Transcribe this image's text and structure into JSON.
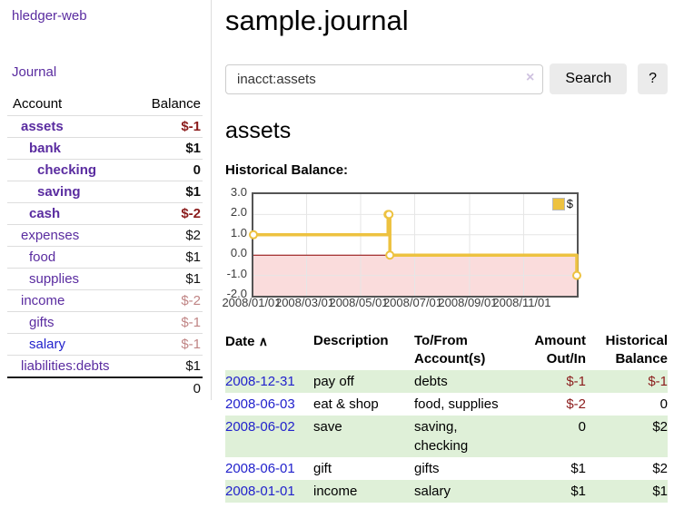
{
  "colors": {
    "link_purple": "#5a2ca0",
    "link_blue": "#2222cc",
    "negative_red": "#8b1c1c",
    "muted_negative": "#c08585",
    "row_stripe_green": "#dff0d8",
    "series_gold": "#edc240"
  },
  "sidebar": {
    "app_title": "hledger-web",
    "journal_label": "Journal",
    "accounts_table": {
      "headers": {
        "account": "Account",
        "balance": "Balance"
      },
      "rows": [
        {
          "account": "assets",
          "depth": 1,
          "bold": true,
          "balance": "$-1",
          "balance_style": "neg-strong"
        },
        {
          "account": "bank",
          "depth": 2,
          "bold": true,
          "balance": "$1",
          "balance_style": "pos-strong"
        },
        {
          "account": "checking",
          "depth": 3,
          "bold": true,
          "balance": "0",
          "balance_style": "pos-strong"
        },
        {
          "account": "saving",
          "depth": 3,
          "bold": true,
          "balance": "$1",
          "balance_style": "pos-strong"
        },
        {
          "account": "cash",
          "depth": 2,
          "bold": true,
          "balance": "$-2",
          "balance_style": "neg-strong"
        },
        {
          "account": "expenses",
          "depth": 1,
          "bold": false,
          "balance": "$2",
          "balance_style": "pos"
        },
        {
          "account": "food",
          "depth": 2,
          "bold": false,
          "balance": "$1",
          "balance_style": "pos"
        },
        {
          "account": "supplies",
          "depth": 2,
          "bold": false,
          "balance": "$1",
          "balance_style": "pos"
        },
        {
          "account": "income",
          "depth": 1,
          "bold": false,
          "balance": "$-2",
          "balance_style": "neg-muted"
        },
        {
          "account": "gifts",
          "depth": 2,
          "bold": false,
          "balance": "$-1",
          "balance_style": "neg-muted"
        },
        {
          "account": "salary",
          "depth": 2,
          "bold": false,
          "balance": "$-1",
          "balance_style": "neg-muted",
          "link_color": "blue"
        },
        {
          "account": "liabilities:debts",
          "depth": 1,
          "bold": false,
          "balance": "$1",
          "balance_style": "pos"
        }
      ],
      "total": "0"
    }
  },
  "header": {
    "title": "sample.journal"
  },
  "search": {
    "query": "inacct:assets",
    "clear_icon": "×",
    "search_button": "Search",
    "help_button": "?"
  },
  "account_page": {
    "title": "assets",
    "chart_label": "Historical Balance:"
  },
  "chart_data": {
    "type": "line",
    "title": "Historical Balance",
    "step": true,
    "series": [
      {
        "name": "$",
        "color": "#edc240",
        "points": [
          {
            "x": "2008-01-01",
            "y": 1
          },
          {
            "x": "2008-06-01",
            "y": 2
          },
          {
            "x": "2008-06-02",
            "y": 2
          },
          {
            "x": "2008-06-03",
            "y": 0
          },
          {
            "x": "2008-12-31",
            "y": -1
          }
        ]
      }
    ],
    "x_range": [
      "2008-01-01",
      "2008-12-31"
    ],
    "ylim": [
      -2,
      3
    ],
    "x_ticks": [
      "2008/01/01",
      "2008/03/01",
      "2008/05/01",
      "2008/07/01",
      "2008/09/01",
      "2008/11/01"
    ],
    "y_ticks": [
      "3.0",
      "2.0",
      "1.0",
      "0.0",
      "-1.0",
      "-2.0"
    ],
    "grid": true,
    "legend": {
      "label": "$",
      "position": "top-right"
    },
    "negative_region_color": "#fadcdc",
    "zero_line_color": "#8b0000",
    "gridline_color": "#e6e6e6"
  },
  "transactions": {
    "headers": {
      "date": "Date",
      "sort_icon": "∧",
      "description": "Description",
      "accounts": "To/From Account(s)",
      "amount": "Amount Out/In",
      "balance": "Historical Balance"
    },
    "rows": [
      {
        "date": "2008-12-31",
        "description": "pay off",
        "accounts": "debts",
        "amount": "$-1",
        "amount_negative": true,
        "balance": "$-1",
        "balance_negative": true
      },
      {
        "date": "2008-06-03",
        "description": "eat & shop",
        "accounts": "food, supplies",
        "amount": "$-2",
        "amount_negative": true,
        "balance": "0",
        "balance_negative": false
      },
      {
        "date": "2008-06-02",
        "description": "save",
        "accounts": "saving, checking",
        "amount": "0",
        "amount_negative": false,
        "balance": "$2",
        "balance_negative": false
      },
      {
        "date": "2008-06-01",
        "description": "gift",
        "accounts": "gifts",
        "amount": "$1",
        "amount_negative": false,
        "balance": "$2",
        "balance_negative": false
      },
      {
        "date": "2008-01-01",
        "description": "income",
        "accounts": "salary",
        "amount": "$1",
        "amount_negative": false,
        "balance": "$1",
        "balance_negative": false
      }
    ]
  }
}
